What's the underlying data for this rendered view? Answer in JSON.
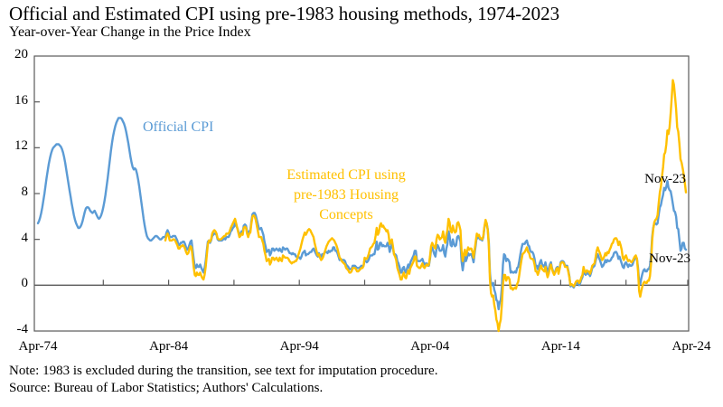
{
  "title": "Official and Estimated CPI using pre-1983 housing methods, 1974-2023",
  "subtitle": "Year-over-Year Change in the Price Index",
  "note": "Note: 1983 is excluded during the transition, see text for imputation procedure.",
  "source": "Source: Bureau of Labor Statistics; Authors' Calculations.",
  "annotations": {
    "official_label": "Official CPI",
    "estimated_label_line1": "Estimated CPI using",
    "estimated_label_line2": "pre-1983 Housing",
    "estimated_label_line3": "Concepts",
    "endpoint_estimated": "Nov-23",
    "endpoint_official": "Nov-23"
  },
  "colors": {
    "official": "#5B9BD5",
    "estimated": "#FFC000",
    "axis": "#595959",
    "text": "#000000"
  },
  "chart_data": {
    "type": "line",
    "title": "Official and Estimated CPI using pre-1983 housing methods, 1974-2023",
    "ylabel": "Year-over-Year Change in the Price Index",
    "x_axis": {
      "tick_labels": [
        "Apr-74",
        "Apr-84",
        "Apr-94",
        "Apr-04",
        "Apr-14",
        "Apr-24"
      ],
      "minor_tick_interval_years": 5,
      "start": "1974-04",
      "end": "2024-04"
    },
    "y_axis": {
      "ticks": [
        20,
        16,
        12,
        8,
        4,
        0,
        -4
      ],
      "min": -4,
      "max": 20,
      "grid": false
    },
    "legend_position": "inline-text-labels",
    "series": [
      {
        "name": "Official CPI",
        "color_key": "official",
        "start": "1974-04",
        "end": "2023-11",
        "frequency": "monthly",
        "values": [
          5.4,
          5.6,
          5.9,
          6.3,
          6.8,
          7.4,
          8.0,
          8.7,
          9.4,
          10.0,
          10.6,
          11.1,
          11.5,
          11.8,
          12.0,
          12.1,
          12.2,
          12.3,
          12.3,
          12.3,
          12.2,
          12.1,
          11.9,
          11.6,
          11.2,
          10.7,
          10.1,
          9.5,
          8.9,
          8.3,
          7.7,
          7.1,
          6.6,
          6.1,
          5.7,
          5.4,
          5.2,
          5.0,
          5.0,
          5.1,
          5.3,
          5.6,
          6.0,
          6.4,
          6.7,
          6.8,
          6.8,
          6.7,
          6.5,
          6.4,
          6.3,
          6.4,
          6.5,
          6.3,
          6.1,
          5.9,
          5.8,
          5.9,
          6.1,
          6.4,
          6.8,
          7.3,
          7.9,
          8.6,
          9.3,
          10.1,
          10.9,
          11.7,
          12.4,
          13.0,
          13.5,
          13.9,
          14.2,
          14.4,
          14.6,
          14.6,
          14.6,
          14.5,
          14.3,
          14.1,
          13.8,
          13.4,
          12.9,
          12.4,
          11.8,
          11.2,
          10.7,
          10.3,
          10.1,
          10.2,
          10.1,
          9.7,
          9.2,
          8.6,
          7.9,
          7.2,
          6.5,
          5.8,
          5.2,
          4.7,
          4.3,
          4.1,
          4.0,
          3.9,
          3.9,
          4.0,
          4.1,
          4.2,
          4.3,
          4.3,
          4.2,
          4.1,
          4.0,
          4.0,
          4.1,
          4.2,
          4.2,
          4.2,
          4.6,
          4.8,
          4.6,
          4.2,
          4.2,
          4.2,
          4.3,
          4.3,
          4.3,
          4.1,
          3.9,
          3.5,
          3.5,
          3.7,
          3.7,
          3.8,
          3.8,
          3.6,
          3.3,
          3.1,
          3.2,
          3.5,
          3.8,
          3.9,
          3.1,
          2.3,
          1.6,
          1.5,
          1.8,
          1.6,
          1.6,
          1.8,
          1.5,
          1.3,
          1.1,
          1.5,
          2.1,
          3.0,
          3.8,
          3.9,
          3.7,
          3.9,
          4.3,
          4.4,
          4.5,
          4.5,
          4.4,
          4.0,
          3.9,
          3.9,
          3.9,
          3.9,
          4.0,
          4.1,
          4.0,
          4.2,
          4.2,
          4.2,
          4.4,
          4.7,
          4.8,
          5.0,
          5.1,
          5.4,
          5.2,
          5.0,
          4.7,
          4.3,
          4.5,
          4.7,
          4.6,
          5.2,
          5.3,
          5.2,
          4.7,
          4.4,
          4.7,
          4.8,
          5.6,
          6.2,
          6.3,
          6.3,
          6.1,
          5.7,
          5.3,
          4.9,
          4.9,
          5.0,
          4.7,
          4.4,
          3.8,
          3.4,
          2.9,
          3.0,
          3.1,
          2.6,
          2.8,
          3.2,
          3.2,
          3.0,
          3.1,
          3.2,
          3.1,
          3.0,
          3.2,
          3.0,
          2.9,
          3.3,
          3.2,
          3.1,
          3.2,
          3.2,
          3.0,
          2.8,
          2.8,
          2.7,
          2.8,
          2.7,
          2.7,
          2.5,
          2.5,
          2.5,
          2.4,
          2.3,
          2.5,
          2.8,
          2.9,
          3.0,
          2.6,
          2.7,
          2.7,
          2.8,
          2.9,
          2.9,
          3.1,
          3.2,
          3.0,
          2.8,
          2.6,
          2.5,
          2.8,
          2.6,
          2.5,
          2.7,
          2.7,
          2.8,
          2.9,
          2.9,
          2.8,
          3.0,
          2.9,
          3.0,
          3.0,
          3.3,
          3.3,
          3.0,
          3.0,
          2.8,
          2.5,
          2.2,
          2.3,
          2.2,
          2.2,
          2.2,
          2.1,
          1.8,
          1.7,
          1.6,
          1.4,
          1.4,
          1.4,
          1.7,
          1.7,
          1.7,
          1.6,
          1.5,
          1.5,
          1.5,
          1.6,
          1.7,
          1.6,
          1.7,
          2.3,
          2.1,
          2.0,
          2.1,
          2.3,
          2.6,
          2.6,
          2.6,
          2.7,
          2.7,
          3.2,
          3.8,
          3.1,
          3.2,
          3.7,
          3.7,
          3.4,
          3.5,
          3.4,
          3.4,
          3.4,
          3.7,
          3.5,
          2.9,
          3.3,
          3.6,
          3.2,
          2.7,
          2.7,
          2.6,
          2.1,
          1.9,
          1.6,
          1.1,
          1.1,
          1.5,
          1.6,
          1.2,
          1.1,
          1.5,
          1.8,
          1.5,
          2.0,
          2.2,
          2.4,
          2.6,
          3.0,
          3.0,
          2.2,
          2.1,
          2.1,
          2.1,
          2.2,
          2.3,
          2.0,
          1.8,
          1.9,
          1.9,
          1.7,
          1.7,
          2.3,
          3.1,
          3.3,
          3.0,
          2.7,
          2.5,
          3.2,
          3.5,
          3.3,
          3.0,
          3.0,
          3.1,
          3.5,
          2.8,
          2.5,
          3.2,
          3.6,
          4.7,
          4.3,
          3.5,
          3.4,
          4.0,
          3.6,
          3.4,
          3.5,
          4.2,
          4.3,
          4.1,
          3.8,
          2.1,
          1.3,
          2.0,
          2.5,
          2.1,
          2.4,
          2.8,
          2.6,
          2.7,
          2.7,
          2.4,
          2.0,
          2.8,
          3.5,
          4.3,
          4.1,
          4.3,
          4.0,
          4.0,
          3.9,
          4.2,
          5.0,
          5.6,
          5.4,
          4.9,
          3.7,
          1.1,
          0.1,
          0.0,
          0.2,
          -0.4,
          -0.7,
          -1.3,
          -1.4,
          -2.1,
          -1.5,
          -1.3,
          -0.2,
          1.8,
          2.7,
          2.6,
          2.1,
          2.3,
          2.2,
          2.0,
          1.1,
          1.2,
          1.1,
          1.1,
          1.2,
          1.1,
          1.5,
          1.6,
          2.1,
          2.7,
          3.2,
          3.6,
          3.6,
          3.6,
          3.8,
          3.9,
          3.5,
          3.4,
          3.0,
          2.9,
          2.9,
          2.7,
          2.3,
          1.7,
          1.7,
          1.4,
          1.7,
          2.0,
          2.2,
          1.8,
          1.7,
          1.6,
          2.0,
          1.5,
          1.1,
          1.4,
          1.8,
          2.0,
          1.5,
          1.2,
          1.0,
          1.2,
          1.5,
          1.6,
          1.1,
          1.5,
          2.0,
          2.1,
          2.1,
          2.0,
          1.7,
          1.7,
          1.7,
          1.3,
          0.8,
          -0.1,
          0.0,
          -0.1,
          -0.2,
          0.0,
          0.1,
          0.2,
          0.2,
          0.0,
          0.2,
          0.5,
          0.7,
          1.4,
          1.0,
          0.9,
          1.1,
          1.0,
          1.0,
          0.8,
          1.1,
          1.5,
          1.6,
          1.7,
          2.1,
          2.5,
          2.7,
          2.4,
          2.2,
          1.9,
          1.6,
          1.7,
          1.9,
          2.2,
          2.0,
          2.2,
          2.1,
          2.1,
          2.2,
          2.4,
          2.5,
          2.8,
          2.9,
          2.9,
          2.7,
          2.3,
          2.5,
          2.2,
          1.9,
          1.6,
          1.5,
          1.9,
          2.0,
          1.8,
          1.6,
          1.8,
          1.7,
          1.7,
          1.8,
          2.1,
          2.3,
          2.5,
          2.3,
          1.5,
          0.3,
          0.1,
          0.6,
          1.0,
          1.3,
          1.4,
          1.2,
          1.2,
          1.4,
          1.4,
          1.7,
          2.6,
          4.2,
          5.0,
          5.4,
          5.4,
          5.3,
          5.4,
          6.2,
          6.8,
          7.0,
          7.5,
          7.9,
          8.5,
          8.3,
          8.6,
          9.1,
          8.5,
          8.3,
          8.2,
          7.7,
          7.1,
          6.5,
          6.4,
          6.0,
          5.0,
          4.9,
          4.0,
          3.0,
          3.2,
          3.7,
          3.7,
          3.2,
          3.1
        ]
      },
      {
        "name": "Estimated CPI using pre-1983 Housing Concepts",
        "color_key": "estimated",
        "start": "1984-01",
        "end": "2023-11",
        "frequency": "monthly",
        "values": [
          3.9,
          4.3,
          4.5,
          4.3,
          3.9,
          3.9,
          3.9,
          4.0,
          4.0,
          3.9,
          3.7,
          3.5,
          3.2,
          3.2,
          3.4,
          3.4,
          3.5,
          3.4,
          3.2,
          2.9,
          2.7,
          2.8,
          3.1,
          3.4,
          3.3,
          2.5,
          1.6,
          0.9,
          0.8,
          1.1,
          0.9,
          0.9,
          1.1,
          0.8,
          0.6,
          0.5,
          0.9,
          1.6,
          2.6,
          3.6,
          3.9,
          3.8,
          4.0,
          4.5,
          4.7,
          4.8,
          4.7,
          4.5,
          4.1,
          4.0,
          4.0,
          4.0,
          4.1,
          4.2,
          4.3,
          4.3,
          4.5,
          4.5,
          4.5,
          4.7,
          5.0,
          5.2,
          5.4,
          5.6,
          5.8,
          5.4,
          5.0,
          4.6,
          4.2,
          4.3,
          4.5,
          4.4,
          5.0,
          5.1,
          5.0,
          4.5,
          4.2,
          4.5,
          4.6,
          5.4,
          6.0,
          6.1,
          6.0,
          5.7,
          5.2,
          4.7,
          4.2,
          4.2,
          4.2,
          3.9,
          3.6,
          3.0,
          2.6,
          2.1,
          2.2,
          2.3,
          1.8,
          2.0,
          2.4,
          2.4,
          2.2,
          2.3,
          2.4,
          2.2,
          2.1,
          2.4,
          2.2,
          2.1,
          2.6,
          2.5,
          2.4,
          2.4,
          2.4,
          2.3,
          2.1,
          2.0,
          1.9,
          2.0,
          2.0,
          2.1,
          2.1,
          2.3,
          2.6,
          2.9,
          3.2,
          3.6,
          4.0,
          4.3,
          4.6,
          4.4,
          4.6,
          4.8,
          4.9,
          4.8,
          4.6,
          4.4,
          4.2,
          3.7,
          3.3,
          2.9,
          2.6,
          2.7,
          2.4,
          2.2,
          2.3,
          2.5,
          2.8,
          3.1,
          3.4,
          3.6,
          3.8,
          3.9,
          4.0,
          4.1,
          4.0,
          3.9,
          3.7,
          3.5,
          3.2,
          2.8,
          2.4,
          2.3,
          2.1,
          2.0,
          1.9,
          1.8,
          1.5,
          1.4,
          1.3,
          1.1,
          1.1,
          1.2,
          1.5,
          1.5,
          1.5,
          1.4,
          1.2,
          1.2,
          1.3,
          1.4,
          1.5,
          1.5,
          1.7,
          2.4,
          2.3,
          2.3,
          2.5,
          2.8,
          3.2,
          3.3,
          3.4,
          3.6,
          3.7,
          4.3,
          5.0,
          4.4,
          4.6,
          5.2,
          5.4,
          5.1,
          5.2,
          5.0,
          4.9,
          4.7,
          4.8,
          4.4,
          3.6,
          3.8,
          4.0,
          3.4,
          2.7,
          2.5,
          2.2,
          1.5,
          1.2,
          0.9,
          0.5,
          0.5,
          0.9,
          1.1,
          0.7,
          0.6,
          1.0,
          1.3,
          1.0,
          1.5,
          1.7,
          1.9,
          2.1,
          2.5,
          2.5,
          1.7,
          1.6,
          1.5,
          1.5,
          1.7,
          1.9,
          1.6,
          1.5,
          1.7,
          1.8,
          1.7,
          1.8,
          2.5,
          3.4,
          3.7,
          3.5,
          3.3,
          3.2,
          4.0,
          4.4,
          4.3,
          4.0,
          4.1,
          4.2,
          4.7,
          4.0,
          3.7,
          4.4,
          4.8,
          5.8,
          5.5,
          4.7,
          4.6,
          5.2,
          4.8,
          4.6,
          4.7,
          5.4,
          5.5,
          5.2,
          4.8,
          3.0,
          2.1,
          2.7,
          3.1,
          2.6,
          2.9,
          3.3,
          3.1,
          3.2,
          3.2,
          2.9,
          2.4,
          3.1,
          3.8,
          4.5,
          4.3,
          4.4,
          4.1,
          4.1,
          4.0,
          4.3,
          5.1,
          5.7,
          5.4,
          4.8,
          3.4,
          0.5,
          -0.7,
          -1.0,
          -0.9,
          -1.7,
          -2.2,
          -3.0,
          -3.3,
          -4.0,
          -3.4,
          -3.0,
          -1.7,
          0.0,
          0.9,
          0.9,
          0.4,
          0.7,
          0.7,
          0.5,
          -0.3,
          -0.2,
          -0.4,
          -0.3,
          -0.2,
          -0.3,
          0.1,
          0.3,
          0.9,
          1.6,
          2.2,
          2.7,
          2.8,
          2.9,
          3.1,
          3.3,
          2.9,
          2.8,
          2.4,
          2.3,
          2.3,
          2.2,
          1.8,
          1.2,
          1.2,
          0.9,
          1.2,
          1.5,
          1.7,
          1.4,
          1.3,
          1.2,
          1.6,
          1.1,
          0.7,
          1.0,
          1.5,
          1.8,
          1.4,
          1.1,
          0.9,
          1.1,
          1.4,
          1.5,
          1.0,
          1.4,
          1.9,
          2.0,
          2.0,
          1.9,
          1.6,
          1.6,
          1.6,
          1.2,
          0.7,
          0.0,
          0.1,
          0.0,
          -0.1,
          0.1,
          0.3,
          0.4,
          0.4,
          0.2,
          0.4,
          0.7,
          0.9,
          1.6,
          1.2,
          1.1,
          1.3,
          1.2,
          1.2,
          1.0,
          1.3,
          1.7,
          1.8,
          1.9,
          2.4,
          3.0,
          3.3,
          3.0,
          2.8,
          2.5,
          2.2,
          2.3,
          2.5,
          2.8,
          2.6,
          2.9,
          2.8,
          3.1,
          3.3,
          3.6,
          3.7,
          4.0,
          4.1,
          4.1,
          3.9,
          3.5,
          3.8,
          3.5,
          3.1,
          2.4,
          2.2,
          2.5,
          2.6,
          2.3,
          2.1,
          2.2,
          2.1,
          2.0,
          2.1,
          2.3,
          2.5,
          2.6,
          2.3,
          1.2,
          -0.5,
          -1.0,
          -0.5,
          -0.1,
          0.2,
          0.3,
          0.2,
          0.2,
          0.4,
          0.4,
          0.8,
          1.9,
          3.9,
          4.9,
          5.5,
          5.7,
          5.8,
          6.1,
          7.2,
          8.1,
          8.6,
          9.5,
          10.3,
          11.4,
          11.6,
          12.3,
          13.5,
          13.2,
          13.8,
          15.0,
          16.4,
          17.9,
          17.5,
          16.5,
          15.4,
          13.8,
          13.4,
          12.4,
          11.0,
          10.7,
          10.2,
          9.6,
          8.9,
          8.1
        ]
      }
    ]
  }
}
